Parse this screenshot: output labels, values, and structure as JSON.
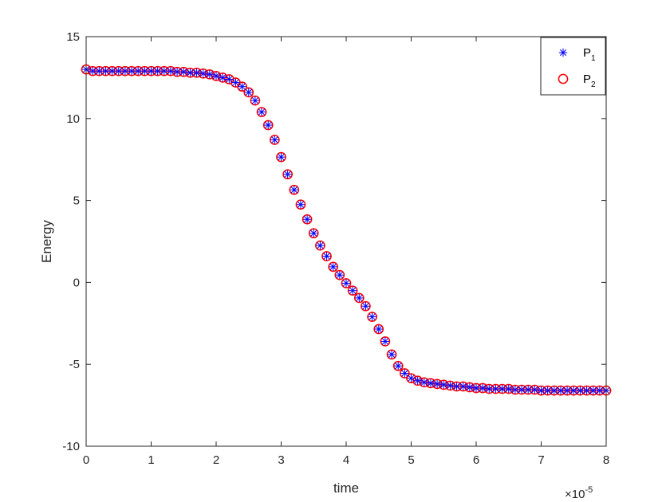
{
  "chart_data": {
    "type": "scatter",
    "xlabel": "time",
    "ylabel": "Energy",
    "xlim": [
      0,
      8
    ],
    "ylim": [
      -10,
      15
    ],
    "x_multiplier": "×10",
    "x_multiplier_exponent": "-5",
    "xticks": [
      "0",
      "1",
      "2",
      "3",
      "4",
      "5",
      "6",
      "7",
      "8"
    ],
    "yticks": [
      "-10",
      "-5",
      "0",
      "5",
      "10",
      "15"
    ],
    "grid": false,
    "legend_position": "top-right",
    "series": [
      {
        "name": "P",
        "subscript": "1",
        "marker": "asterisk",
        "color": "#0000ff",
        "x": [
          0,
          0.1,
          0.2,
          0.3,
          0.4,
          0.5,
          0.6,
          0.7,
          0.8,
          0.9,
          1.0,
          1.1,
          1.2,
          1.3,
          1.4,
          1.5,
          1.6,
          1.7,
          1.8,
          1.9,
          2.0,
          2.1,
          2.2,
          2.3,
          2.4,
          2.5,
          2.6,
          2.7,
          2.8,
          2.9,
          3.0,
          3.1,
          3.2,
          3.3,
          3.4,
          3.5,
          3.6,
          3.7,
          3.8,
          3.9,
          4.0,
          4.1,
          4.2,
          4.3,
          4.4,
          4.5,
          4.6,
          4.7,
          4.8,
          4.9,
          5.0,
          5.1,
          5.2,
          5.3,
          5.4,
          5.5,
          5.6,
          5.7,
          5.8,
          5.9,
          6.0,
          6.1,
          6.2,
          6.3,
          6.4,
          6.5,
          6.6,
          6.7,
          6.8,
          6.9,
          7.0,
          7.1,
          7.2,
          7.3,
          7.4,
          7.5,
          7.6,
          7.7,
          7.8,
          7.9,
          8.0
        ],
        "y": [
          13.0,
          12.9,
          12.9,
          12.9,
          12.9,
          12.9,
          12.9,
          12.9,
          12.9,
          12.9,
          12.9,
          12.9,
          12.9,
          12.9,
          12.85,
          12.85,
          12.8,
          12.8,
          12.75,
          12.7,
          12.6,
          12.5,
          12.4,
          12.2,
          11.95,
          11.6,
          11.1,
          10.4,
          9.6,
          8.7,
          7.65,
          6.6,
          5.65,
          4.75,
          3.85,
          3.0,
          2.25,
          1.6,
          0.95,
          0.45,
          -0.05,
          -0.5,
          -0.95,
          -1.45,
          -2.1,
          -2.85,
          -3.6,
          -4.4,
          -5.1,
          -5.55,
          -5.85,
          -6.0,
          -6.1,
          -6.15,
          -6.2,
          -6.25,
          -6.3,
          -6.35,
          -6.35,
          -6.4,
          -6.45,
          -6.45,
          -6.5,
          -6.5,
          -6.5,
          -6.5,
          -6.55,
          -6.55,
          -6.55,
          -6.55,
          -6.6,
          -6.6,
          -6.6,
          -6.6,
          -6.6,
          -6.6,
          -6.6,
          -6.6,
          -6.6,
          -6.6,
          -6.6
        ]
      },
      {
        "name": "P",
        "subscript": "2",
        "marker": "circle",
        "color": "#ff0000",
        "x": [
          0,
          0.1,
          0.2,
          0.3,
          0.4,
          0.5,
          0.6,
          0.7,
          0.8,
          0.9,
          1.0,
          1.1,
          1.2,
          1.3,
          1.4,
          1.5,
          1.6,
          1.7,
          1.8,
          1.9,
          2.0,
          2.1,
          2.2,
          2.3,
          2.4,
          2.5,
          2.6,
          2.7,
          2.8,
          2.9,
          3.0,
          3.1,
          3.2,
          3.3,
          3.4,
          3.5,
          3.6,
          3.7,
          3.8,
          3.9,
          4.0,
          4.1,
          4.2,
          4.3,
          4.4,
          4.5,
          4.6,
          4.7,
          4.8,
          4.9,
          5.0,
          5.1,
          5.2,
          5.3,
          5.4,
          5.5,
          5.6,
          5.7,
          5.8,
          5.9,
          6.0,
          6.1,
          6.2,
          6.3,
          6.4,
          6.5,
          6.6,
          6.7,
          6.8,
          6.9,
          7.0,
          7.1,
          7.2,
          7.3,
          7.4,
          7.5,
          7.6,
          7.7,
          7.8,
          7.9,
          8.0
        ],
        "y": [
          13.0,
          12.9,
          12.9,
          12.9,
          12.9,
          12.9,
          12.9,
          12.9,
          12.9,
          12.9,
          12.9,
          12.9,
          12.9,
          12.9,
          12.85,
          12.85,
          12.8,
          12.8,
          12.75,
          12.7,
          12.6,
          12.5,
          12.4,
          12.2,
          11.95,
          11.6,
          11.1,
          10.4,
          9.6,
          8.7,
          7.65,
          6.6,
          5.65,
          4.75,
          3.85,
          3.0,
          2.25,
          1.6,
          0.95,
          0.45,
          -0.05,
          -0.5,
          -0.95,
          -1.45,
          -2.1,
          -2.85,
          -3.6,
          -4.4,
          -5.1,
          -5.55,
          -5.85,
          -6.0,
          -6.1,
          -6.15,
          -6.2,
          -6.25,
          -6.3,
          -6.35,
          -6.35,
          -6.4,
          -6.45,
          -6.45,
          -6.5,
          -6.5,
          -6.5,
          -6.5,
          -6.55,
          -6.55,
          -6.55,
          -6.55,
          -6.6,
          -6.6,
          -6.6,
          -6.6,
          -6.6,
          -6.6,
          -6.6,
          -6.6,
          -6.6,
          -6.6,
          -6.6
        ]
      }
    ]
  }
}
